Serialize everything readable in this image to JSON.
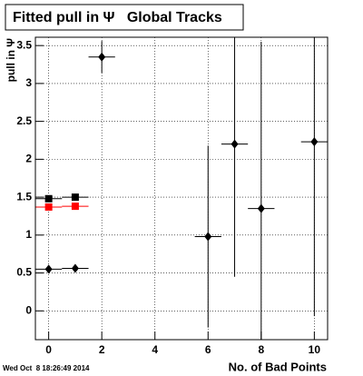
{
  "chart_data": {
    "type": "scatter",
    "title": "Fitted pull in Ψ   Global Tracks",
    "x_label": "No. of Bad Points",
    "y_label": "pull in Ψ",
    "timestamp": "Wed Oct  8 18:26:49 2014",
    "xlim": [
      -0.5,
      10.5
    ],
    "xticks": [
      0,
      2,
      4,
      6,
      8,
      10
    ],
    "ylim": [
      -0.38,
      3.61
    ],
    "yticks": [
      0,
      0.5,
      1,
      1.5,
      2,
      2.5,
      3,
      3.5
    ],
    "grid": true,
    "series": [
      {
        "color": "#000000",
        "marker": "diamond",
        "x": [
          0,
          1,
          2,
          6,
          7,
          8,
          10
        ],
        "values": [
          0.55,
          0.56,
          3.35,
          0.98,
          2.2,
          1.35,
          2.23
        ],
        "errors": [
          0.02,
          0.02,
          0.21,
          1.2,
          1.75,
          2.2,
          2.3
        ],
        "xerrors": [
          0.5,
          0.5,
          0.5,
          0.5,
          0.5,
          0.5,
          0.5
        ]
      },
      {
        "color": "#000000",
        "marker": "square",
        "x": [
          0,
          1
        ],
        "values": [
          1.48,
          1.5
        ],
        "errors": [
          0.01,
          0.01
        ],
        "xerrors": [
          0.5,
          0.5
        ]
      },
      {
        "color": "#ff0000",
        "marker": "square",
        "x": [
          0,
          1
        ],
        "values": [
          1.37,
          1.38
        ],
        "errors": [
          0.01,
          0.01
        ],
        "xerrors": [
          0.5,
          0.5
        ]
      }
    ]
  }
}
